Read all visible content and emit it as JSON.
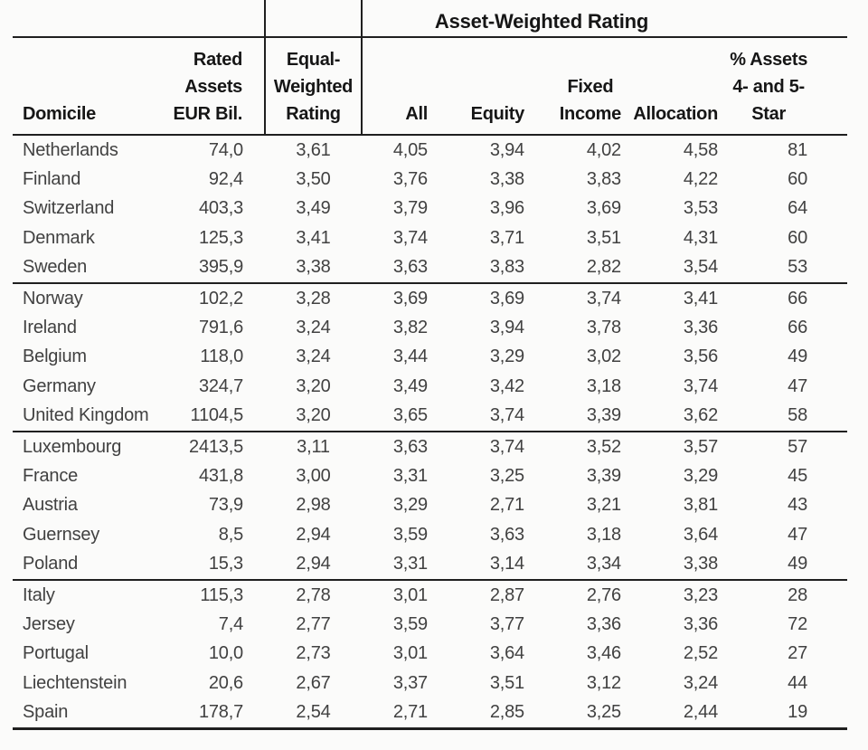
{
  "table": {
    "group_header": "Asset-Weighted Rating",
    "headers": {
      "domicile": "Domicile",
      "rated_assets": "Rated\nAssets\nEUR Bil.",
      "equal_weighted": "Equal-\nWeighted\nRating",
      "all": "All",
      "equity": "Equity",
      "fixed_income": "Fixed\nIncome",
      "allocation": "Allocation",
      "pct_4_5_star": "% Assets\n4- and 5-\nStar"
    },
    "group_size": 5,
    "rows": [
      [
        "Netherlands",
        "74,0",
        "3,61",
        "4,05",
        "3,94",
        "4,02",
        "4,58",
        "81"
      ],
      [
        "Finland",
        "92,4",
        "3,50",
        "3,76",
        "3,38",
        "3,83",
        "4,22",
        "60"
      ],
      [
        "Switzerland",
        "403,3",
        "3,49",
        "3,79",
        "3,96",
        "3,69",
        "3,53",
        "64"
      ],
      [
        "Denmark",
        "125,3",
        "3,41",
        "3,74",
        "3,71",
        "3,51",
        "4,31",
        "60"
      ],
      [
        "Sweden",
        "395,9",
        "3,38",
        "3,63",
        "3,83",
        "2,82",
        "3,54",
        "53"
      ],
      [
        "Norway",
        "102,2",
        "3,28",
        "3,69",
        "3,69",
        "3,74",
        "3,41",
        "66"
      ],
      [
        "Ireland",
        "791,6",
        "3,24",
        "3,82",
        "3,94",
        "3,78",
        "3,36",
        "66"
      ],
      [
        "Belgium",
        "118,0",
        "3,24",
        "3,44",
        "3,29",
        "3,02",
        "3,56",
        "49"
      ],
      [
        "Germany",
        "324,7",
        "3,20",
        "3,49",
        "3,42",
        "3,18",
        "3,74",
        "47"
      ],
      [
        "United Kingdom",
        "1104,5",
        "3,20",
        "3,65",
        "3,74",
        "3,39",
        "3,62",
        "58"
      ],
      [
        "Luxembourg",
        "2413,5",
        "3,11",
        "3,63",
        "3,74",
        "3,52",
        "3,57",
        "57"
      ],
      [
        "France",
        "431,8",
        "3,00",
        "3,31",
        "3,25",
        "3,39",
        "3,29",
        "45"
      ],
      [
        "Austria",
        "73,9",
        "2,98",
        "3,29",
        "2,71",
        "3,21",
        "3,81",
        "43"
      ],
      [
        "Guernsey",
        "8,5",
        "2,94",
        "3,59",
        "3,63",
        "3,18",
        "3,64",
        "47"
      ],
      [
        "Poland",
        "15,3",
        "2,94",
        "3,31",
        "3,14",
        "3,34",
        "3,38",
        "49"
      ],
      [
        "Italy",
        "115,3",
        "2,78",
        "3,01",
        "2,87",
        "2,76",
        "3,23",
        "28"
      ],
      [
        "Jersey",
        "7,4",
        "2,77",
        "3,59",
        "3,77",
        "3,36",
        "3,36",
        "72"
      ],
      [
        "Portugal",
        "10,0",
        "2,73",
        "3,01",
        "3,64",
        "3,46",
        "2,52",
        "27"
      ],
      [
        "Liechtenstein",
        "20,6",
        "2,67",
        "3,37",
        "3,51",
        "3,12",
        "3,24",
        "44"
      ],
      [
        "Spain",
        "178,7",
        "2,54",
        "2,71",
        "2,85",
        "3,25",
        "2,44",
        "19"
      ]
    ],
    "colors": {
      "rule": "#1f1f1f",
      "header_text": "#161616",
      "data_text": "#414141",
      "background": "#fbfbfa"
    }
  }
}
